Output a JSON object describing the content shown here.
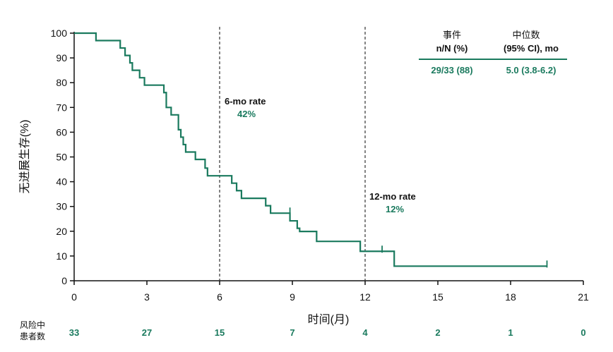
{
  "chart_data": {
    "type": "line",
    "xlabel": "时间(月)",
    "ylabel": "无进展生存(%)",
    "xlim": [
      0,
      21
    ],
    "ylim": [
      0,
      100
    ],
    "xticks": [
      "0",
      "3",
      "6",
      "9",
      "12",
      "15",
      "18",
      "21"
    ],
    "yticks": [
      "0",
      "10",
      "20",
      "30",
      "40",
      "50",
      "60",
      "70",
      "80",
      "90",
      "100"
    ],
    "colors": {
      "curve": "#1a7a5e",
      "axis": "#111111"
    },
    "series": [
      {
        "steps": [
          [
            0,
            100
          ],
          [
            0.9,
            97
          ],
          [
            1.9,
            94
          ],
          [
            2.1,
            91
          ],
          [
            2.3,
            88
          ],
          [
            2.4,
            85
          ],
          [
            2.7,
            82
          ],
          [
            2.9,
            79
          ],
          [
            3.7,
            76
          ],
          [
            3.8,
            70
          ],
          [
            4.0,
            67
          ],
          [
            4.3,
            61
          ],
          [
            4.4,
            58
          ],
          [
            4.5,
            55
          ],
          [
            4.6,
            52
          ],
          [
            5.0,
            49
          ],
          [
            5.4,
            45.5
          ],
          [
            5.5,
            42.4
          ],
          [
            6.5,
            39.4
          ],
          [
            6.7,
            36.4
          ],
          [
            6.9,
            33.3
          ],
          [
            7.9,
            30.3
          ],
          [
            8.1,
            27.3
          ],
          [
            8.9,
            24.2
          ],
          [
            9.2,
            21.2
          ],
          [
            9.3,
            19.9
          ],
          [
            10.0,
            15.9
          ],
          [
            11.8,
            11.9
          ],
          [
            13.2,
            5.9
          ],
          [
            19.5,
            5.9
          ]
        ],
        "censored": [
          [
            8.9,
            27.3
          ],
          [
            12.7,
            11.9
          ],
          [
            19.5,
            5.9
          ]
        ]
      }
    ],
    "reference_lines": [
      {
        "x": 6,
        "label": "6-mo rate",
        "value": "42%"
      },
      {
        "x": 12,
        "label": "12-mo rate",
        "value": "12%"
      }
    ],
    "legend": {
      "col1_header": [
        "事件",
        "n/N (%)"
      ],
      "col2_header": [
        "中位数",
        "(95% CI), mo"
      ],
      "col1_value": "29/33 (88)",
      "col2_value": "5.0 (3.8-6.2)"
    },
    "risk_table": {
      "title_line1": "风险中",
      "title_line2": "患者数",
      "x": [
        0,
        3,
        6,
        9,
        12,
        15,
        18,
        21
      ],
      "counts": [
        "33",
        "27",
        "15",
        "7",
        "4",
        "2",
        "1",
        "0"
      ]
    }
  }
}
